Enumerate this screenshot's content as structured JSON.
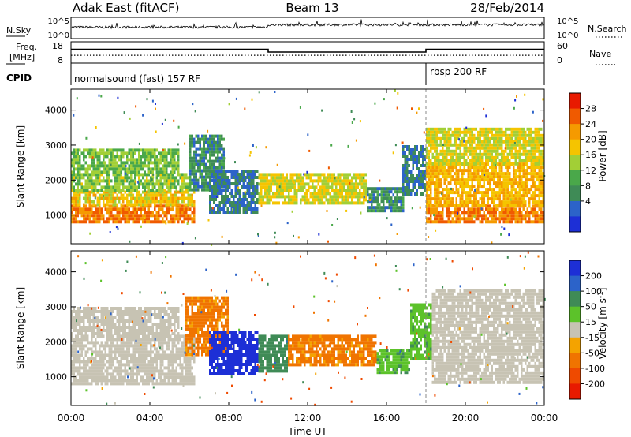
{
  "header": {
    "title": "Adak East (fitACF)",
    "beam": "Beam 13",
    "date": "28/Feb/2014"
  },
  "top_panels": {
    "nsky_label": "N.Sky",
    "nsearch_label": "N.Search",
    "nsky_ticks": [
      "10^5",
      "10^0"
    ],
    "nsearch_ticks": [
      "10^5",
      "10^0"
    ],
    "freq_label": "Freq.",
    "freq_unit": "[MHz]",
    "freq_ticks": [
      "18",
      "8"
    ],
    "nave_label": "Nave",
    "nave_ticks": [
      "60",
      "0"
    ],
    "cpid_label": "CPID",
    "cpid_segments": [
      "normalsound (fast) 157 RF",
      "rbsp 200 RF"
    ]
  },
  "colors": {
    "power": [
      "#1d2fd6",
      "#2c63c9",
      "#3f8b56",
      "#4aa84a",
      "#a2cf36",
      "#f5c400",
      "#f59a00",
      "#f05a00",
      "#e81a00"
    ],
    "velocity": [
      "#1d2fd6",
      "#2c63c9",
      "#3f8b56",
      "#5cc22a",
      "#c7c3b3",
      "#f4a300",
      "#f07400",
      "#ef4a00",
      "#e81a00"
    ]
  },
  "chart_data": [
    {
      "type": "line",
      "name": "time-series",
      "x_unit": "hours UT",
      "freq_series": {
        "x": [
          0,
          10,
          10,
          18,
          18,
          24
        ],
        "values": [
          14.5,
          14.5,
          13.2,
          13.2,
          14.5,
          14.5
        ],
        "ylim": [
          8,
          18
        ]
      },
      "nave_series": {
        "x": [
          0,
          18,
          18,
          24
        ],
        "values": [
          22,
          22,
          22,
          22
        ],
        "ylim": [
          0,
          60
        ]
      }
    },
    {
      "type": "heatmap",
      "name": "power",
      "xlabel": "",
      "ylabel": "Slant Range [km]",
      "colorbar_label": "Power [dB]",
      "colorbar_ticks": [
        "28",
        "24",
        "20",
        "16",
        "12",
        "8",
        "4"
      ],
      "xlim": [
        0,
        24
      ],
      "ylim": [
        180,
        4600
      ],
      "yticks": [
        "4000",
        "3000",
        "2000",
        "1000"
      ],
      "regions": [
        {
          "t0": 0.0,
          "t1": 6.3,
          "r0": 800,
          "r1": 1300,
          "value": 28
        },
        {
          "t0": 0.0,
          "t1": 6.3,
          "r0": 1300,
          "r1": 1700,
          "value": 22
        },
        {
          "t0": 0.0,
          "t1": 6.0,
          "r0": 1700,
          "r1": 2200,
          "value": 17
        },
        {
          "t0": 0.0,
          "t1": 5.5,
          "r0": 2200,
          "r1": 2900,
          "value": 16
        },
        {
          "t0": 6.0,
          "t1": 7.8,
          "r0": 1700,
          "r1": 3300,
          "value": 10
        },
        {
          "t0": 7.0,
          "t1": 9.5,
          "r0": 1100,
          "r1": 2300,
          "value": 8
        },
        {
          "t0": 9.5,
          "t1": 15.0,
          "r0": 1300,
          "r1": 2200,
          "value": 20
        },
        {
          "t0": 15.0,
          "t1": 16.8,
          "r0": 1100,
          "r1": 1800,
          "value": 10
        },
        {
          "t0": 16.8,
          "t1": 18.0,
          "r0": 1600,
          "r1": 3000,
          "value": 8
        },
        {
          "t0": 18.0,
          "t1": 24.0,
          "r0": 800,
          "r1": 1300,
          "value": 28
        },
        {
          "t0": 18.0,
          "t1": 24.0,
          "r0": 1300,
          "r1": 2500,
          "value": 24
        },
        {
          "t0": 18.0,
          "t1": 24.0,
          "r0": 2500,
          "r1": 3500,
          "value": 20
        }
      ]
    },
    {
      "type": "heatmap",
      "name": "velocity",
      "xlabel": "Time UT",
      "ylabel": "Slant Range [km]",
      "colorbar_label": "Velocity [m s^-1]",
      "colorbar_ticks": [
        "200",
        "100",
        "50",
        "15",
        "-15",
        "-50",
        "-100",
        "-200"
      ],
      "xlim": [
        0,
        24
      ],
      "ylim": [
        180,
        4600
      ],
      "xticks": [
        "00:00",
        "04:00",
        "08:00",
        "12:00",
        "16:00",
        "20:00",
        "00:00"
      ],
      "yticks": [
        "4000",
        "3000",
        "2000",
        "1000"
      ],
      "regions": [
        {
          "t0": 0.0,
          "t1": 6.3,
          "r0": 800,
          "r1": 2200,
          "value": 0
        },
        {
          "t0": 0.0,
          "t1": 5.5,
          "r0": 2200,
          "r1": 3000,
          "value": 0
        },
        {
          "t0": 5.8,
          "t1": 8.0,
          "r0": 1600,
          "r1": 3300,
          "value": -60
        },
        {
          "t0": 7.0,
          "t1": 9.5,
          "r0": 1100,
          "r1": 2300,
          "value": 220
        },
        {
          "t0": 9.5,
          "t1": 11.0,
          "r0": 1200,
          "r1": 2200,
          "value": 80
        },
        {
          "t0": 11.0,
          "t1": 15.5,
          "r0": 1300,
          "r1": 2200,
          "value": -60
        },
        {
          "t0": 15.5,
          "t1": 17.2,
          "r0": 1100,
          "r1": 1800,
          "value": 40
        },
        {
          "t0": 17.2,
          "t1": 18.3,
          "r0": 1500,
          "r1": 3100,
          "value": 40
        },
        {
          "t0": 18.3,
          "t1": 24.0,
          "r0": 800,
          "r1": 3500,
          "value": 0
        }
      ]
    }
  ]
}
